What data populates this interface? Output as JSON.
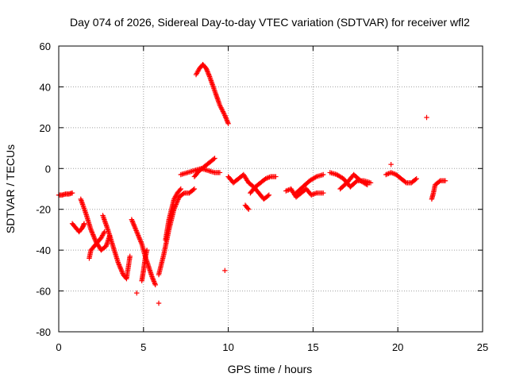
{
  "chart_data": {
    "type": "scatter",
    "title": "Day 074 of 2026, Sidereal Day-to-day VTEC variation (SDTVAR) for receiver wfl2",
    "xlabel": "GPS time / hours",
    "ylabel": "SDTVAR / TECUs",
    "xlim": [
      0,
      25
    ],
    "ylim": [
      -80,
      60
    ],
    "xticks": [
      0,
      5,
      10,
      15,
      20,
      25
    ],
    "yticks": [
      -80,
      -60,
      -40,
      -20,
      0,
      20,
      40,
      60
    ],
    "xtick_labels": [
      "0",
      "5",
      "10",
      "15",
      "20",
      "25"
    ],
    "ytick_labels": [
      "-80",
      "-60",
      "-40",
      "-20",
      "0",
      "20",
      "40",
      "60"
    ],
    "grid": true,
    "marker": "plus",
    "color": "#ff0000",
    "series": [
      {
        "name": "s1",
        "x": [
          0.0,
          0.2,
          0.4,
          0.6,
          0.8
        ],
        "y": [
          -13,
          -13,
          -12.5,
          -12.5,
          -12
        ]
      },
      {
        "name": "s2",
        "x": [
          0.8,
          1.0,
          1.2,
          1.4,
          1.5
        ],
        "y": [
          -27,
          -29,
          -31,
          -29,
          -27
        ]
      },
      {
        "name": "s3",
        "x": [
          1.3,
          1.6,
          1.9,
          2.2,
          2.5,
          2.8,
          3.0
        ],
        "y": [
          -15,
          -22,
          -30,
          -36,
          -40,
          -38,
          -33
        ]
      },
      {
        "name": "s4",
        "x": [
          1.8,
          1.9,
          2.1,
          2.3,
          2.5,
          2.7
        ],
        "y": [
          -44,
          -40,
          -38,
          -36,
          -34,
          -31
        ]
      },
      {
        "name": "s5",
        "x": [
          2.6,
          2.9,
          3.2,
          3.5,
          3.8,
          4.0,
          4.2
        ],
        "y": [
          -23,
          -30,
          -38,
          -46,
          -52,
          -54,
          -43
        ]
      },
      {
        "name": "s6",
        "x": [
          4.3,
          4.6,
          4.9,
          5.1,
          5.3,
          5.5,
          5.7
        ],
        "y": [
          -25,
          -31,
          -37,
          -43,
          -48,
          -53,
          -57
        ]
      },
      {
        "name": "s7",
        "x": [
          4.6
        ],
        "y": [
          -61
        ]
      },
      {
        "name": "s8",
        "x": [
          4.9,
          5.0,
          5.1,
          5.2
        ],
        "y": [
          -55,
          -50,
          -44,
          -40
        ]
      },
      {
        "name": "s9",
        "x": [
          5.9
        ],
        "y": [
          -66
        ]
      },
      {
        "name": "s10",
        "x": [
          5.9,
          6.2,
          6.5,
          6.8,
          7.1,
          7.4,
          7.7,
          8.0
        ],
        "y": [
          -52,
          -42,
          -30,
          -20,
          -14,
          -12,
          -12,
          -10
        ]
      },
      {
        "name": "s11",
        "x": [
          6.3,
          6.5,
          6.8,
          7.0,
          7.2
        ],
        "y": [
          -35,
          -25,
          -15,
          -12,
          -10
        ]
      },
      {
        "name": "s12",
        "x": [
          7.2,
          7.6,
          8.0,
          8.4,
          8.8,
          9.2,
          9.5
        ],
        "y": [
          -3,
          -2,
          -1,
          0,
          -1,
          -2,
          -2
        ]
      },
      {
        "name": "s13",
        "x": [
          8.0,
          8.3,
          8.6,
          8.9,
          9.2
        ],
        "y": [
          -4,
          -1,
          1,
          3,
          5
        ]
      },
      {
        "name": "s14",
        "x": [
          8.1,
          8.3,
          8.5,
          8.7,
          8.9,
          9.2,
          9.5,
          9.8,
          10.0
        ],
        "y": [
          46,
          49,
          51,
          49,
          45,
          38,
          31,
          26,
          22
        ]
      },
      {
        "name": "s15",
        "x": [
          9.8
        ],
        "y": [
          -50
        ]
      },
      {
        "name": "s16",
        "x": [
          10.0,
          10.3,
          10.6,
          10.9,
          11.2,
          11.5,
          11.8,
          12.1,
          12.4
        ],
        "y": [
          -4,
          -7,
          -5,
          -3,
          -7,
          -9,
          -12,
          -15,
          -13
        ]
      },
      {
        "name": "s17",
        "x": [
          11.0,
          11.2
        ],
        "y": [
          -18,
          -20
        ]
      },
      {
        "name": "s18",
        "x": [
          11.3,
          11.6,
          11.9,
          12.2,
          12.5,
          12.8
        ],
        "y": [
          -12,
          -9,
          -7,
          -5,
          -4,
          -4
        ]
      },
      {
        "name": "s19",
        "x": [
          13.4,
          13.7,
          14.0,
          14.3,
          14.6,
          14.9,
          15.2,
          15.6
        ],
        "y": [
          -11,
          -10,
          -14,
          -12,
          -10,
          -13,
          -12,
          -12
        ]
      },
      {
        "name": "s20",
        "x": [
          14.0,
          14.4,
          14.8,
          15.2,
          15.6
        ],
        "y": [
          -12,
          -9,
          -6,
          -4,
          -3
        ]
      },
      {
        "name": "s21",
        "x": [
          16.0,
          16.4,
          16.8,
          17.2,
          17.6,
          18.0,
          18.4
        ],
        "y": [
          -2,
          -3,
          -5,
          -9,
          -6,
          -6,
          -7
        ]
      },
      {
        "name": "s22",
        "x": [
          16.6,
          17.0,
          17.4,
          17.8,
          18.2
        ],
        "y": [
          -10,
          -7,
          -3,
          -6,
          -8
        ]
      },
      {
        "name": "s23",
        "x": [
          19.3,
          19.6,
          19.9,
          20.2,
          20.5,
          20.8,
          21.1
        ],
        "y": [
          -3,
          -2,
          -3,
          -5,
          -7,
          -7,
          -5
        ]
      },
      {
        "name": "s24",
        "x": [
          19.6
        ],
        "y": [
          2
        ]
      },
      {
        "name": "s25",
        "x": [
          21.7
        ],
        "y": [
          25
        ]
      },
      {
        "name": "s26",
        "x": [
          22.0,
          22.1,
          22.2,
          22.5,
          22.8
        ],
        "y": [
          -15,
          -12,
          -8,
          -6,
          -6
        ]
      }
    ]
  }
}
